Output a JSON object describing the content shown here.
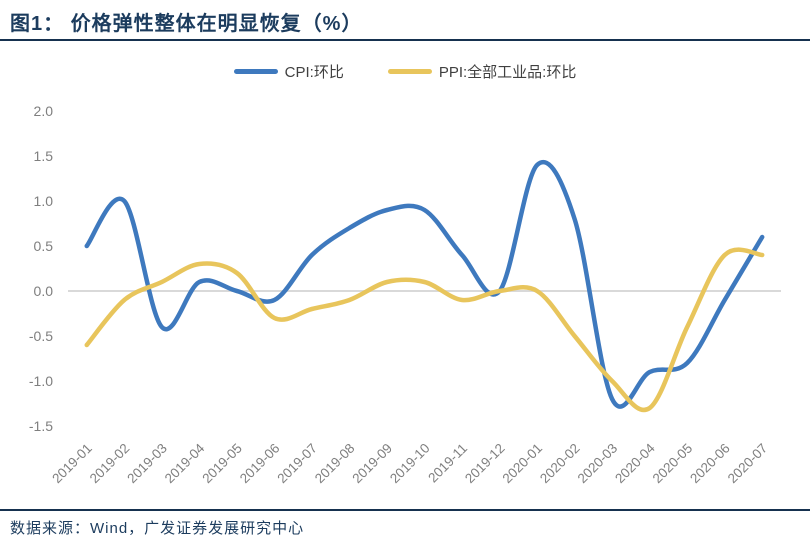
{
  "header": {
    "title": "图1： 价格弹性整体在明显恢复（%）"
  },
  "footer": {
    "source": "数据来源：Wind，广发证券发展研究中心"
  },
  "theme": {
    "title_text_color": "#1C3C5E",
    "rule_color": "#16314F",
    "axis_text_color": "#7F7F7F",
    "grid_color": "#D9D9D9",
    "legend_text_color": "#404040"
  },
  "chart_data": {
    "type": "line",
    "smoothed": true,
    "title": "价格弹性整体在明显恢复（%）",
    "categories": [
      "2019-01",
      "2019-02",
      "2019-03",
      "2019-04",
      "2019-05",
      "2019-06",
      "2019-07",
      "2019-08",
      "2019-09",
      "2019-10",
      "2019-11",
      "2019-12",
      "2020-01",
      "2020-02",
      "2020-03",
      "2020-04",
      "2020-05",
      "2020-06",
      "2020-07"
    ],
    "series": [
      {
        "id": "cpi",
        "name": "CPI:环比",
        "color": "#3E79BE",
        "values": [
          0.5,
          1.0,
          -0.4,
          0.1,
          0.0,
          -0.1,
          0.4,
          0.7,
          0.9,
          0.9,
          0.4,
          0.0,
          1.4,
          0.8,
          -1.2,
          -0.9,
          -0.8,
          -0.1,
          0.6
        ]
      },
      {
        "id": "ppi",
        "name": "PPI:全部工业品:环比",
        "color": "#E8C55C",
        "values": [
          -0.6,
          -0.1,
          0.1,
          0.3,
          0.2,
          -0.3,
          -0.2,
          -0.1,
          0.1,
          0.1,
          -0.1,
          0.0,
          0.0,
          -0.5,
          -1.0,
          -1.3,
          -0.4,
          0.4,
          0.4
        ]
      }
    ],
    "ylim": [
      -1.5,
      2.0
    ],
    "ytick_step": 0.5,
    "ytick_labels": [
      "2.0",
      "1.5",
      "1.0",
      "0.5",
      "0.0",
      "-0.5",
      "-1.0",
      "-1.5"
    ],
    "grid": "zero-line-only",
    "legend_position": "top-center",
    "xlabel": "",
    "ylabel": ""
  }
}
